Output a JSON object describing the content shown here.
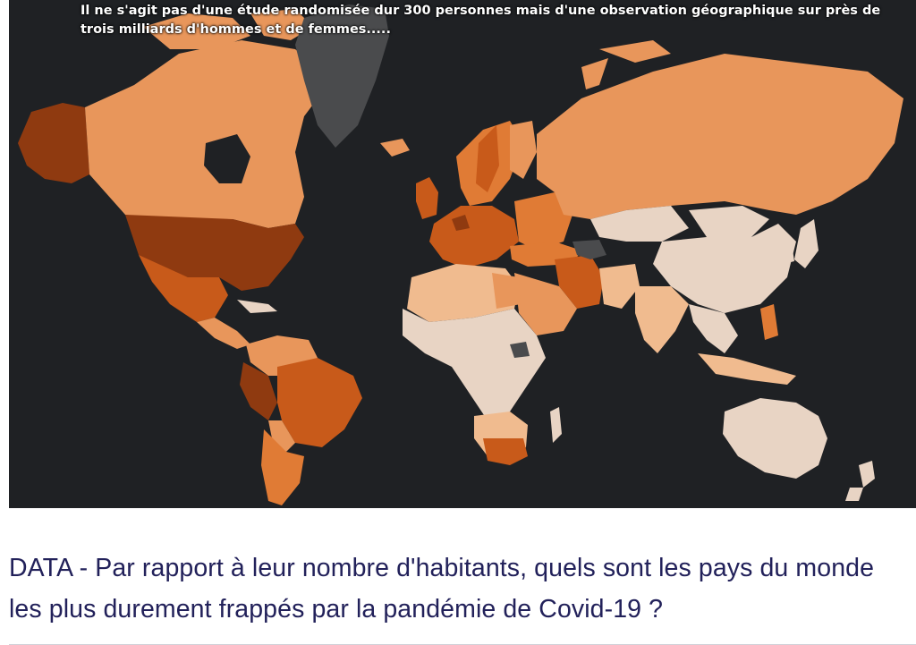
{
  "map": {
    "overlay_caption": "Il ne s'agit pas d'une étude randomisée dur 300 personnes mais d'une observation géographique sur près de trois milliards d'hommes et de femmes.....",
    "background_color": "#1f2124",
    "legend_colors": {
      "very_high": "#8f3a10",
      "high": "#c85a1a",
      "medium_high": "#e07b35",
      "medium": "#e8965b",
      "low": "#f0bb8f",
      "very_low": "#e8d4c4",
      "no_data": "#4a4b4d"
    }
  },
  "article": {
    "headline": "DATA - Par rapport à leur nombre d'habitants, quels sont les pays du monde les plus durement frappés par la pandémie de Covid-19 ?"
  }
}
